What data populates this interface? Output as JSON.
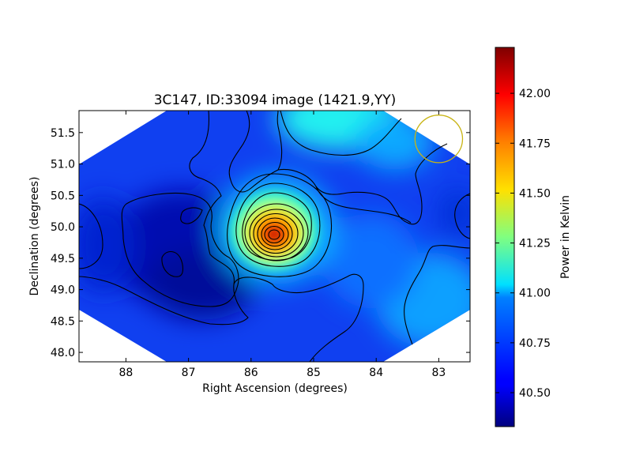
{
  "chart_data": {
    "type": "heatmap",
    "title": "3C147, ID:33094 image (1421.9,YY)",
    "xlabel": "Right Ascension (degrees)",
    "ylabel": "Declination (degrees)",
    "xlim": [
      88.75,
      82.5
    ],
    "ylim": [
      47.85,
      51.85
    ],
    "x_ticks": [
      88,
      87,
      86,
      85,
      84,
      83
    ],
    "x_tick_labels": [
      "88",
      "87",
      "86",
      "85",
      "84",
      "83"
    ],
    "y_ticks": [
      48.0,
      48.5,
      49.0,
      49.5,
      50.0,
      50.5,
      51.0,
      51.5
    ],
    "y_tick_labels": [
      "48.0",
      "48.5",
      "49.0",
      "49.5",
      "50.0",
      "50.5",
      "51.0",
      "51.5"
    ],
    "grid": false,
    "colormap": "jet",
    "colorbar": {
      "label": "Power in Kelvin",
      "range": [
        40.33,
        42.23
      ],
      "ticks": [
        40.5,
        40.75,
        41.0,
        41.25,
        41.5,
        41.75,
        42.0
      ],
      "tick_labels": [
        "40.50",
        "40.75",
        "41.00",
        "41.25",
        "41.50",
        "41.75",
        "42.00"
      ]
    },
    "peak": {
      "ra": 85.65,
      "dec": 49.87,
      "value": 42.2
    },
    "beam": {
      "ra": 83.0,
      "dec": 51.4,
      "radius_deg": 0.38,
      "color": "#c8b414"
    }
  }
}
